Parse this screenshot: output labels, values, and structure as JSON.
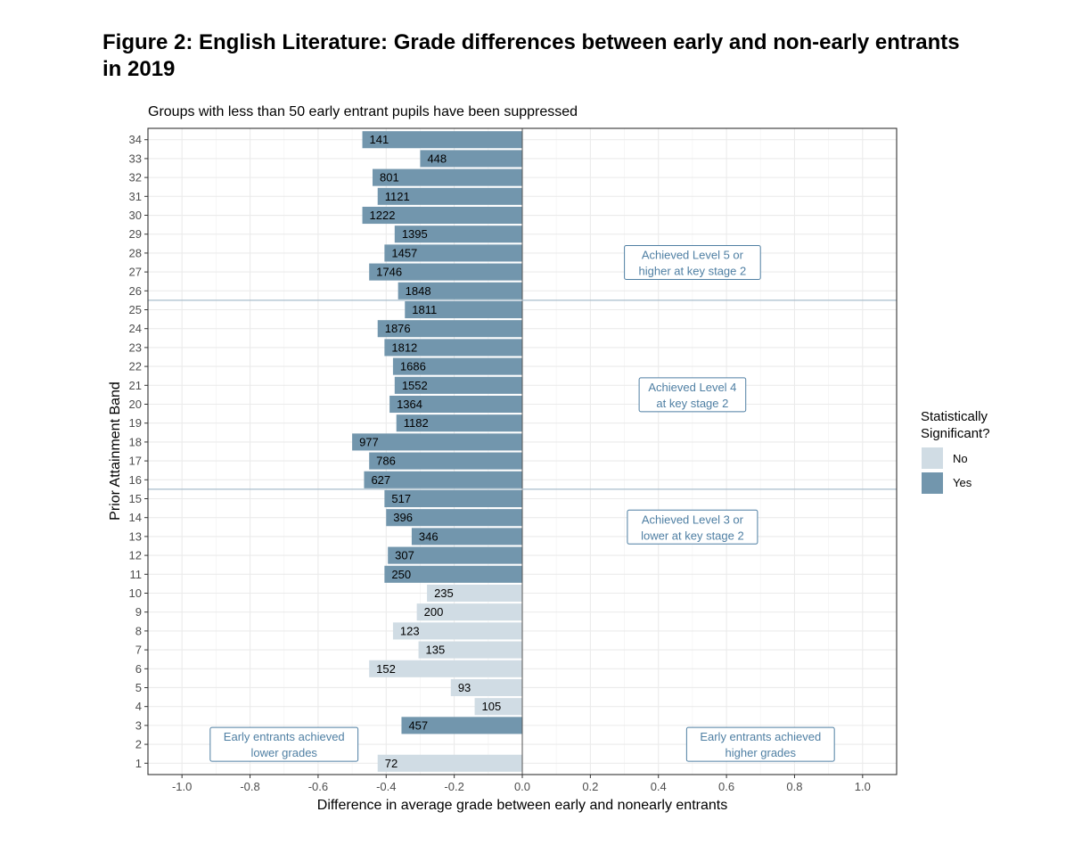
{
  "figure": {
    "title": "Figure 2: English Literature: Grade differences between early and non-early entrants in 2019"
  },
  "chart_data": {
    "type": "bar",
    "orientation": "horizontal",
    "subtitle": "Groups with less than 50 early entrant pupils have been suppressed",
    "xlabel": "Difference in average grade between early and nonearly entrants",
    "ylabel": "Prior Attainment Band",
    "xlim": [
      -1.1,
      1.1
    ],
    "x_ticks": [
      -1.0,
      -0.8,
      -0.6,
      -0.4,
      -0.2,
      0.0,
      0.2,
      0.4,
      0.6,
      0.8,
      1.0
    ],
    "x_tick_labels": [
      "-1.0",
      "-0.8",
      "-0.6",
      "-0.4",
      "-0.2",
      "0.0",
      "0.2",
      "0.4",
      "0.6",
      "0.8",
      "1.0"
    ],
    "categories": [
      1,
      3,
      4,
      5,
      6,
      7,
      8,
      9,
      10,
      11,
      12,
      13,
      14,
      15,
      16,
      17,
      18,
      19,
      20,
      21,
      22,
      23,
      24,
      25,
      26,
      27,
      28,
      29,
      30,
      31,
      32,
      33,
      34
    ],
    "y_tick_labels": [
      "1",
      "2",
      "3",
      "4",
      "5",
      "6",
      "7",
      "8",
      "9",
      "10",
      "11",
      "12",
      "13",
      "14",
      "15",
      "16",
      "17",
      "18",
      "19",
      "20",
      "21",
      "22",
      "23",
      "24",
      "25",
      "26",
      "27",
      "28",
      "29",
      "30",
      "31",
      "32",
      "33",
      "34"
    ],
    "values": [
      -0.425,
      -0.355,
      -0.14,
      -0.21,
      -0.45,
      -0.305,
      -0.38,
      -0.31,
      -0.28,
      -0.405,
      -0.395,
      -0.325,
      -0.4,
      -0.405,
      -0.465,
      -0.45,
      -0.5,
      -0.37,
      -0.39,
      -0.375,
      -0.38,
      -0.405,
      -0.425,
      -0.345,
      -0.365,
      -0.45,
      -0.405,
      -0.375,
      -0.47,
      -0.425,
      -0.44,
      -0.3,
      -0.47
    ],
    "labels": [
      "72",
      "457",
      "105",
      "93",
      "152",
      "135",
      "123",
      "200",
      "235",
      "250",
      "307",
      "346",
      "396",
      "517",
      "627",
      "786",
      "977",
      "1182",
      "1364",
      "1552",
      "1686",
      "1812",
      "1876",
      "1811",
      "1848",
      "1746",
      "1457",
      "1395",
      "1222",
      "1121",
      "801",
      "448",
      "141"
    ],
    "significant": [
      "No",
      "Yes",
      "No",
      "No",
      "No",
      "No",
      "No",
      "No",
      "No",
      "Yes",
      "Yes",
      "Yes",
      "Yes",
      "Yes",
      "Yes",
      "Yes",
      "Yes",
      "Yes",
      "Yes",
      "Yes",
      "Yes",
      "Yes",
      "Yes",
      "Yes",
      "Yes",
      "Yes",
      "Yes",
      "Yes",
      "Yes",
      "Yes",
      "Yes",
      "Yes",
      "Yes"
    ],
    "reference_lines_y": [
      15.5,
      25.5
    ],
    "legend": {
      "title_line1": "Statistically",
      "title_line2": "Significant?",
      "position": "right",
      "items": [
        {
          "label": "No",
          "color": "#d0dce4"
        },
        {
          "label": "Yes",
          "color": "#7296ad"
        }
      ]
    },
    "annotations": [
      {
        "id": "level5",
        "line1": "Achieved Level 5 or",
        "line2": "higher at key stage 2"
      },
      {
        "id": "level4",
        "line1": "Achieved Level 4",
        "line2": "at key stage 2"
      },
      {
        "id": "level3",
        "line1": "Achieved Level 3 or",
        "line2": "lower at key stage 2"
      },
      {
        "id": "lower",
        "line1": "Early entrants achieved",
        "line2": "lower grades"
      },
      {
        "id": "higher",
        "line1": "Early entrants achieved",
        "line2": "higher grades"
      }
    ],
    "grid": true,
    "colors": {
      "yes": "#7296ad",
      "no": "#d0dce4",
      "annotation": "#4f7fa3",
      "reference_line": "#a9bdcc",
      "grid": "#ebebeb"
    }
  }
}
